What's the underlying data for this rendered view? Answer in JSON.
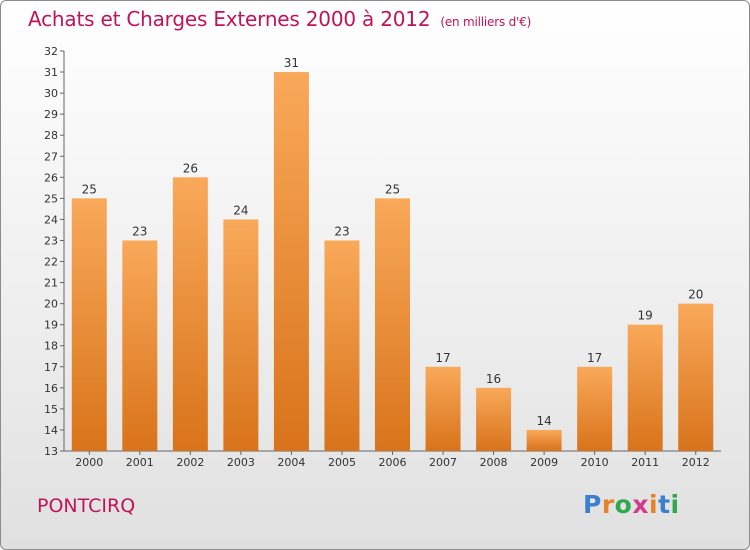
{
  "title": "Achats et Charges Externes 2000 à 2012",
  "subtitle": "(en milliers d'€)",
  "commune": "PONTCIRQ",
  "logo": {
    "letters": [
      "P",
      "r",
      "o",
      "x",
      "i",
      "t",
      "i"
    ],
    "colors": [
      "#3a7fd0",
      "#e8822a",
      "#2fa84f",
      "#d23c8c",
      "#e8822a",
      "#3a7fd0",
      "#2fa84f"
    ]
  },
  "colors": {
    "bar_light": "#f9a95a",
    "bar_dark": "#d8731a",
    "title": "#c0145a"
  },
  "chart_data": {
    "type": "bar",
    "categories": [
      "2000",
      "2001",
      "2002",
      "2003",
      "2004",
      "2005",
      "2006",
      "2007",
      "2008",
      "2009",
      "2010",
      "2011",
      "2012"
    ],
    "values": [
      25,
      23,
      26,
      24,
      31,
      23,
      25,
      17,
      16,
      14,
      17,
      19,
      20
    ],
    "title": "Achats et Charges Externes 2000 à 2012",
    "xlabel": "",
    "ylabel": "",
    "ylim": [
      13,
      32
    ],
    "yticks": [
      13,
      14,
      15,
      16,
      17,
      18,
      19,
      20,
      21,
      22,
      23,
      24,
      25,
      26,
      27,
      28,
      29,
      30,
      31,
      32
    ],
    "grid": false,
    "legend": "none"
  }
}
